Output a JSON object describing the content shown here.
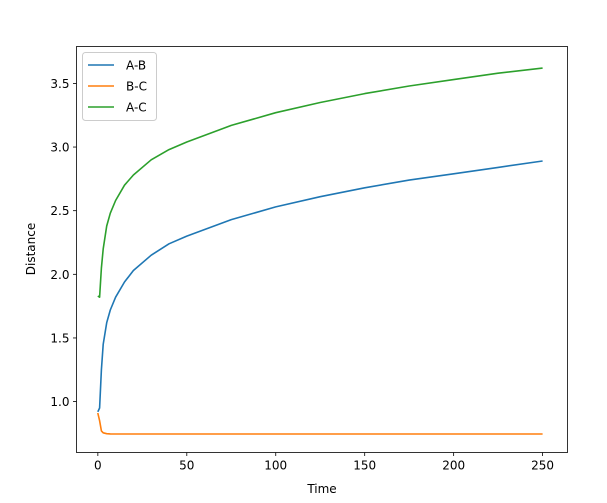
{
  "chart_data": {
    "type": "line",
    "title": "",
    "xlabel": "Time",
    "ylabel": "Distance",
    "xlim": [
      -12,
      264
    ],
    "ylim": [
      0.6,
      3.79
    ],
    "xticks": [
      0,
      50,
      100,
      150,
      200,
      250
    ],
    "xtick_labels": [
      "0",
      "50",
      "100",
      "150",
      "200",
      "250"
    ],
    "yticks": [
      1.0,
      1.5,
      2.0,
      2.5,
      3.0,
      3.5
    ],
    "ytick_labels": [
      "1.0",
      "1.5",
      "2.0",
      "2.5",
      "3.0",
      "3.5"
    ],
    "grid": false,
    "legend_position": "top-left",
    "x": [
      0,
      1,
      2,
      3,
      5,
      7,
      10,
      15,
      20,
      30,
      40,
      50,
      75,
      100,
      125,
      150,
      175,
      200,
      225,
      250
    ],
    "series": [
      {
        "name": "A-B",
        "color": "#1f77b4",
        "values": [
          0.92,
          0.95,
          1.25,
          1.45,
          1.62,
          1.72,
          1.82,
          1.94,
          2.03,
          2.15,
          2.24,
          2.3,
          2.43,
          2.53,
          2.61,
          2.68,
          2.74,
          2.79,
          2.84,
          2.89
        ]
      },
      {
        "name": "B-C",
        "color": "#ff7f0e",
        "values": [
          0.91,
          0.85,
          0.77,
          0.755,
          0.748,
          0.746,
          0.745,
          0.745,
          0.745,
          0.745,
          0.745,
          0.745,
          0.745,
          0.745,
          0.745,
          0.745,
          0.745,
          0.745,
          0.745,
          0.745
        ]
      },
      {
        "name": "A-C",
        "color": "#2ca02c",
        "values": [
          1.83,
          1.82,
          2.05,
          2.2,
          2.38,
          2.48,
          2.58,
          2.7,
          2.78,
          2.9,
          2.98,
          3.04,
          3.17,
          3.27,
          3.35,
          3.42,
          3.48,
          3.53,
          3.58,
          3.62
        ]
      }
    ]
  }
}
